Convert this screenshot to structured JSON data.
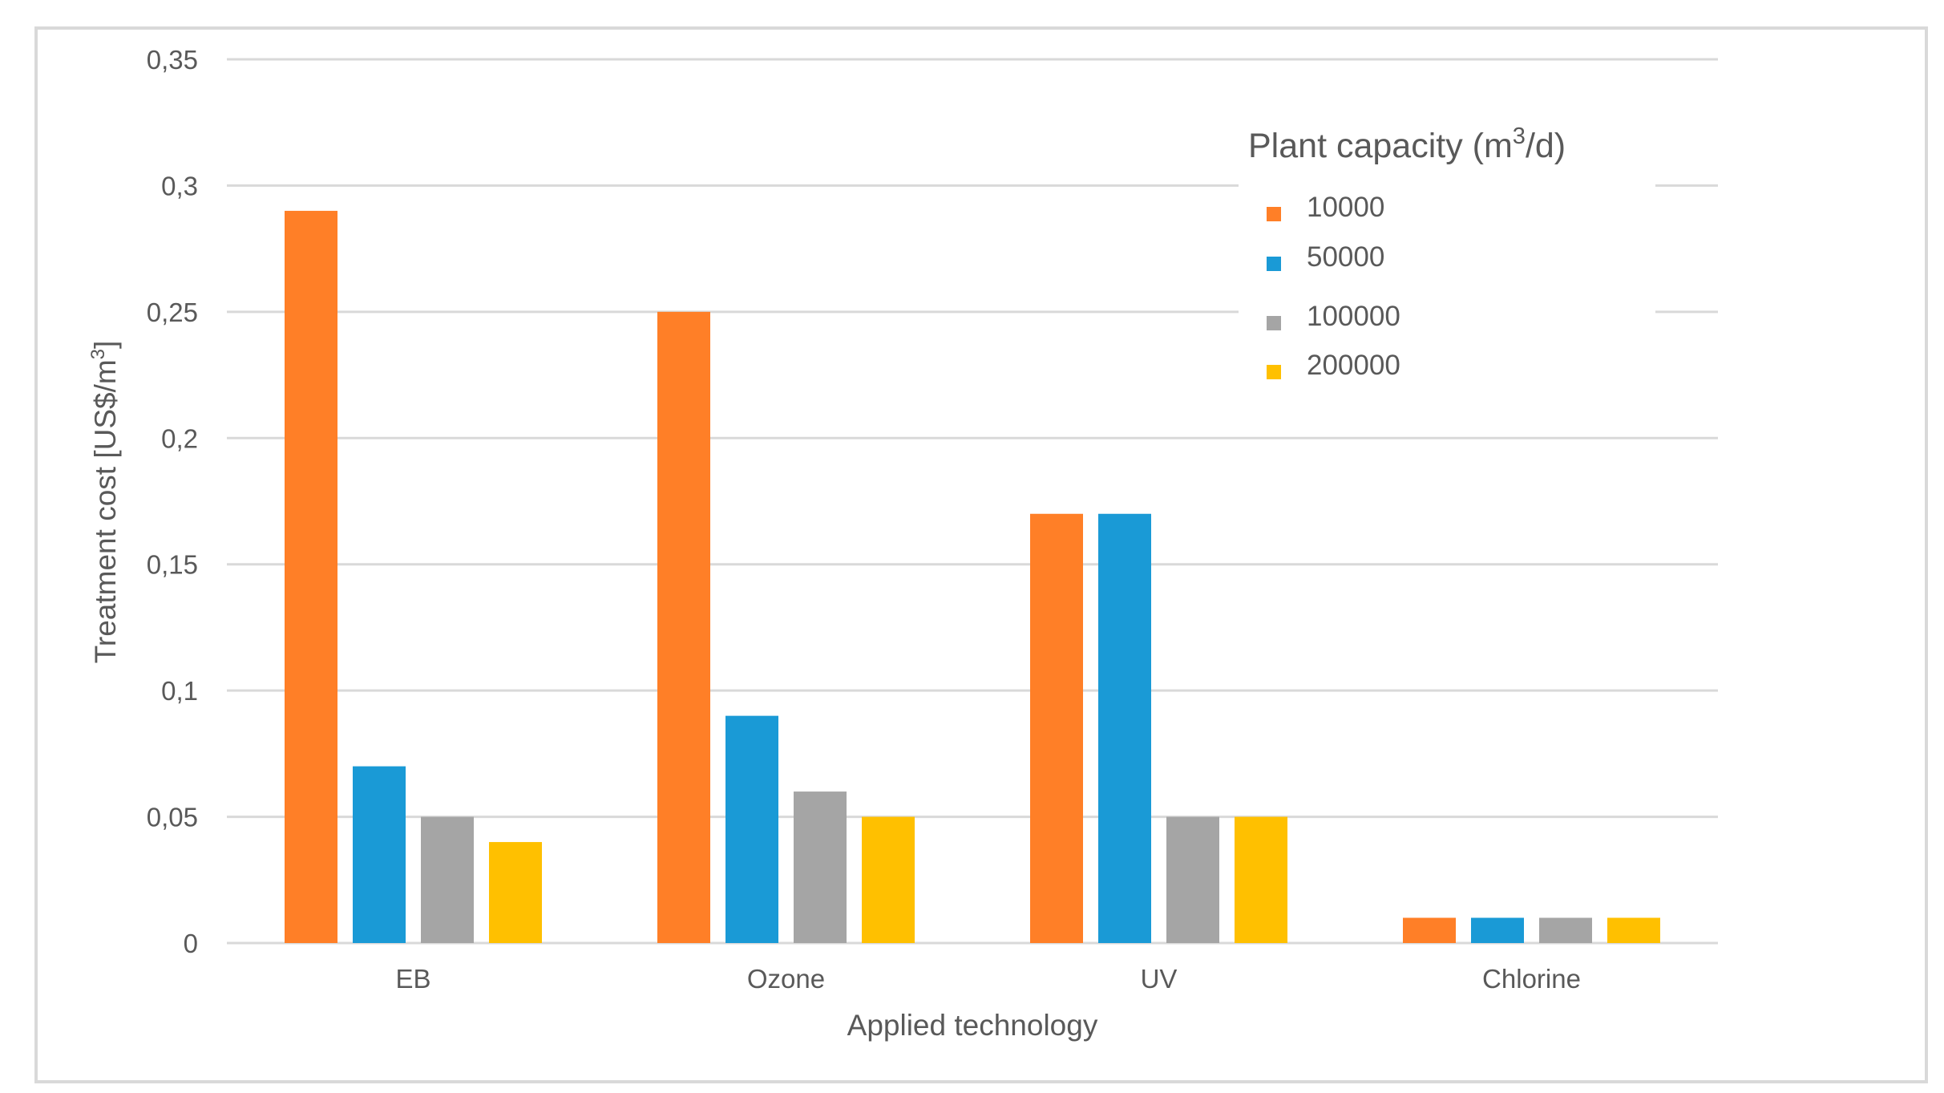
{
  "chart_data": {
    "type": "bar",
    "categories": [
      "EB",
      "Ozone",
      "UV",
      "Chlorine"
    ],
    "series": [
      {
        "name": "10000",
        "color": "#ff7f27",
        "values": [
          0.29,
          0.25,
          0.17,
          0.01
        ]
      },
      {
        "name": "50000",
        "color": "#1a9ad6",
        "values": [
          0.07,
          0.09,
          0.17,
          0.01
        ]
      },
      {
        "name": "100000",
        "color": "#a5a5a5",
        "values": [
          0.05,
          0.06,
          0.05,
          0.01
        ]
      },
      {
        "name": "200000",
        "color": "#ffc000",
        "values": [
          0.04,
          0.05,
          0.05,
          0.01
        ]
      }
    ],
    "ylim": [
      0,
      0.35
    ],
    "yticks": [
      0,
      0.05,
      0.1,
      0.15,
      0.2,
      0.25,
      0.3,
      0.35
    ],
    "ytick_labels": [
      "0",
      "0,05",
      "0,1",
      "0,15",
      "0,2",
      "0,25",
      "0,3",
      "0,35"
    ],
    "xlabel": "Applied technology",
    "ylabel": "Treatment  cost [US$/m",
    "ylabel_sup": "3",
    "ylabel_end": "]",
    "legend": {
      "title": "Plant capacity (m",
      "title_sup": "3",
      "title_end": "/d)",
      "position": "top-right"
    },
    "grid": true,
    "gridline_color": "#d9d9d9"
  }
}
